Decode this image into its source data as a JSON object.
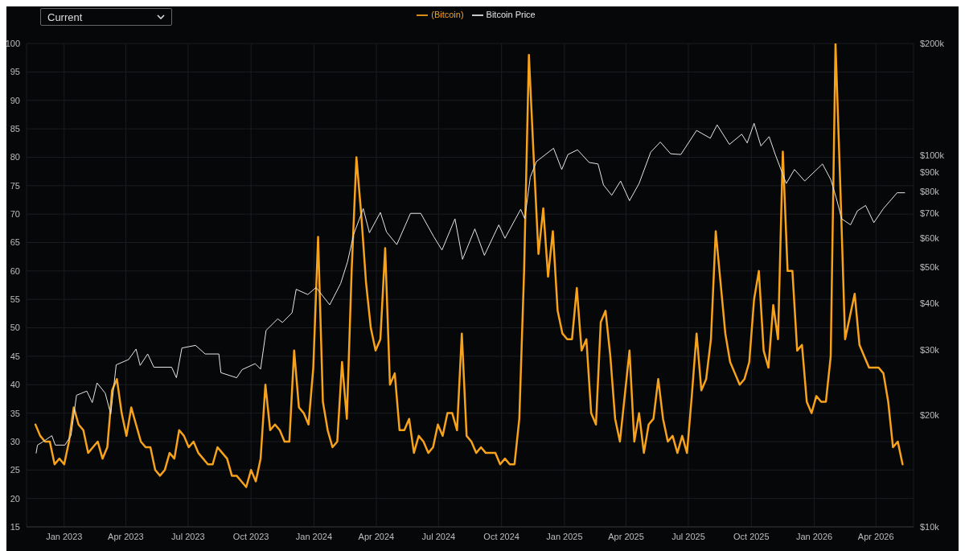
{
  "chart_data": {
    "type": "line",
    "annotations": [
      "Current"
    ],
    "x": [
      "2022-11-20",
      "2022-11-27",
      "2022-12-04",
      "2022-12-11",
      "2022-12-18",
      "2022-12-25",
      "2023-01-01",
      "2023-01-08",
      "2023-01-15",
      "2023-01-22",
      "2023-01-29",
      "2023-02-05",
      "2023-02-12",
      "2023-02-19",
      "2023-02-26",
      "2023-03-05",
      "2023-03-12",
      "2023-03-19",
      "2023-03-26",
      "2023-04-02",
      "2023-04-09",
      "2023-04-16",
      "2023-04-23",
      "2023-04-30",
      "2023-05-07",
      "2023-05-14",
      "2023-05-21",
      "2023-05-28",
      "2023-06-04",
      "2023-06-11",
      "2023-06-18",
      "2023-06-25",
      "2023-07-02",
      "2023-07-09",
      "2023-07-16",
      "2023-07-23",
      "2023-07-30",
      "2023-08-06",
      "2023-08-13",
      "2023-08-20",
      "2023-08-27",
      "2023-09-03",
      "2023-09-10",
      "2023-09-17",
      "2023-09-24",
      "2023-10-01",
      "2023-10-08",
      "2023-10-15",
      "2023-10-22",
      "2023-10-29",
      "2023-11-05",
      "2023-11-12",
      "2023-11-19",
      "2023-11-26",
      "2023-12-03",
      "2023-12-10",
      "2023-12-17",
      "2023-12-24",
      "2023-12-31",
      "2024-01-07",
      "2024-01-14",
      "2024-01-21",
      "2024-01-28",
      "2024-02-04",
      "2024-02-11",
      "2024-02-18",
      "2024-02-25",
      "2024-03-03",
      "2024-03-10",
      "2024-03-17",
      "2024-03-24",
      "2024-03-31",
      "2024-04-07",
      "2024-04-14",
      "2024-04-21",
      "2024-04-28",
      "2024-05-05",
      "2024-05-12",
      "2024-05-19",
      "2024-05-26",
      "2024-06-02",
      "2024-06-09",
      "2024-06-16",
      "2024-06-23",
      "2024-06-30",
      "2024-07-07",
      "2024-07-14",
      "2024-07-21",
      "2024-07-28",
      "2024-08-04",
      "2024-08-11",
      "2024-08-18",
      "2024-08-25",
      "2024-09-01",
      "2024-09-08",
      "2024-09-15",
      "2024-09-22",
      "2024-09-29",
      "2024-10-06",
      "2024-10-13",
      "2024-10-20",
      "2024-10-27",
      "2024-11-03",
      "2024-11-10",
      "2024-11-17",
      "2024-11-24",
      "2024-12-01",
      "2024-12-08",
      "2024-12-15",
      "2024-12-22",
      "2024-12-29",
      "2025-01-05",
      "2025-01-12",
      "2025-01-19",
      "2025-01-26",
      "2025-02-02",
      "2025-02-09",
      "2025-02-16",
      "2025-02-23",
      "2025-03-02",
      "2025-03-09",
      "2025-03-16",
      "2025-03-23",
      "2025-03-30",
      "2025-04-06",
      "2025-04-13",
      "2025-04-20",
      "2025-04-27",
      "2025-05-04",
      "2025-05-11",
      "2025-05-18",
      "2025-05-25",
      "2025-06-01",
      "2025-06-08",
      "2025-06-15",
      "2025-06-22",
      "2025-06-29",
      "2025-07-06",
      "2025-07-13",
      "2025-07-20",
      "2025-07-27",
      "2025-08-03",
      "2025-08-10",
      "2025-08-17",
      "2025-08-24",
      "2025-08-31",
      "2025-09-07",
      "2025-09-14",
      "2025-09-21",
      "2025-09-28",
      "2025-10-05",
      "2025-10-12",
      "2025-10-19",
      "2025-10-26",
      "2025-11-02",
      "2025-11-09",
      "2025-11-16",
      "2025-11-23",
      "2025-11-30",
      "2025-12-07",
      "2025-12-14",
      "2025-12-21",
      "2025-12-28",
      "2026-01-04",
      "2026-01-11",
      "2026-01-18",
      "2026-01-25",
      "2026-02-01",
      "2026-02-08",
      "2026-02-15",
      "2026-02-22",
      "2026-03-01",
      "2026-03-08",
      "2026-03-15",
      "2026-03-22",
      "2026-03-29",
      "2026-04-05",
      "2026-04-12",
      "2026-04-19",
      "2026-04-26",
      "2026-05-03",
      "2026-05-10"
    ],
    "series": [
      {
        "name": "(Bitcoin)",
        "color": "#f7a21b",
        "values": [
          33,
          31,
          30,
          30,
          26,
          27,
          26,
          30,
          36,
          33,
          32,
          28,
          29,
          30,
          27,
          29,
          39,
          41,
          35,
          31,
          36,
          33,
          30,
          29,
          29,
          25,
          24,
          25,
          28,
          27,
          32,
          31,
          29,
          30,
          28,
          27,
          26,
          26,
          29,
          28,
          27,
          24,
          24,
          23,
          22,
          25,
          23,
          27,
          40,
          32,
          33,
          32,
          30,
          30,
          46,
          36,
          35,
          33,
          43,
          66,
          37,
          32,
          29,
          30,
          44,
          34,
          60,
          80,
          70,
          58,
          50,
          46,
          48,
          64,
          40,
          42,
          32,
          32,
          34,
          28,
          31,
          30,
          28,
          29,
          33,
          31,
          35,
          35,
          32,
          49,
          31,
          30,
          28,
          29,
          28,
          28,
          28,
          26,
          27,
          26,
          26,
          34,
          60,
          98,
          80,
          63,
          71,
          59,
          67,
          53,
          49,
          48,
          48,
          57,
          46,
          48,
          35,
          33,
          51,
          53,
          45,
          34,
          30,
          38,
          46,
          30,
          35,
          28,
          33,
          34,
          41,
          34,
          30,
          31,
          28,
          31,
          28,
          38,
          49,
          39,
          41,
          48,
          67,
          58,
          49,
          44,
          42,
          40,
          41,
          44,
          55,
          60,
          46,
          43,
          54,
          48,
          81,
          60,
          60,
          46,
          47,
          37,
          35,
          38,
          37,
          37,
          45,
          100,
          75,
          48,
          52,
          56,
          47,
          45,
          43,
          43,
          43,
          42,
          37,
          29,
          30,
          26
        ]
      },
      {
        "name": "Bitcoin Price",
        "color": "#e6e6e6",
        "axis": "y2",
        "x": [
          "2022-11-21",
          "2022-11-23",
          "2022-11-30",
          "2022-12-14",
          "2022-12-19",
          "2023-01-02",
          "2023-01-11",
          "2023-01-19",
          "2023-02-03",
          "2023-02-11",
          "2023-02-18",
          "2023-03-02",
          "2023-03-10",
          "2023-03-18",
          "2023-04-05",
          "2023-04-16",
          "2023-04-22",
          "2023-05-03",
          "2023-05-12",
          "2023-06-07",
          "2023-06-14",
          "2023-06-22",
          "2023-07-12",
          "2023-07-26",
          "2023-08-15",
          "2023-08-18",
          "2023-09-10",
          "2023-09-18",
          "2023-10-07",
          "2023-10-15",
          "2023-10-23",
          "2023-11-09",
          "2023-11-16",
          "2023-11-30",
          "2023-12-06",
          "2023-12-23",
          "2024-01-04",
          "2024-01-24",
          "2024-02-09",
          "2024-02-19",
          "2024-02-28",
          "2024-03-13",
          "2024-03-22",
          "2024-04-07",
          "2024-04-16",
          "2024-05-01",
          "2024-05-21",
          "2024-06-05",
          "2024-06-24",
          "2024-07-06",
          "2024-07-25",
          "2024-08-05",
          "2024-08-23",
          "2024-09-06",
          "2024-09-27",
          "2024-10-06",
          "2024-10-29",
          "2024-11-04",
          "2024-11-12",
          "2024-11-21",
          "2024-12-16",
          "2024-12-28",
          "2025-01-06",
          "2025-01-20",
          "2025-02-06",
          "2025-02-19",
          "2025-02-27",
          "2025-03-11",
          "2025-03-24",
          "2025-04-06",
          "2025-04-20",
          "2025-05-07",
          "2025-05-21",
          "2025-06-05",
          "2025-06-20",
          "2025-07-13",
          "2025-08-02",
          "2025-08-12",
          "2025-08-30",
          "2025-09-17",
          "2025-09-25",
          "2025-10-05",
          "2025-10-15",
          "2025-10-27",
          "2025-11-05",
          "2025-11-21",
          "2025-12-03",
          "2025-12-18",
          "2026-01-13",
          "2026-01-25",
          "2026-02-02",
          "2026-02-10",
          "2026-02-23",
          "2026-03-05",
          "2026-03-17",
          "2026-03-29",
          "2026-04-12",
          "2026-05-02",
          "2026-05-13"
        ],
        "values": [
          15800,
          16600,
          16900,
          17600,
          16600,
          16600,
          17600,
          22600,
          23200,
          21600,
          24400,
          22900,
          20100,
          27300,
          28200,
          30100,
          27200,
          29200,
          26900,
          26900,
          25200,
          30300,
          30800,
          29200,
          29200,
          26000,
          25200,
          26500,
          27500,
          26600,
          33800,
          36300,
          35500,
          37700,
          43600,
          42200,
          44100,
          39600,
          45200,
          51700,
          61300,
          71900,
          61900,
          70200,
          62200,
          57500,
          69800,
          69800,
          60400,
          55600,
          67500,
          52500,
          63400,
          53800,
          65000,
          59800,
          71600,
          67500,
          87300,
          96200,
          104500,
          91600,
          100500,
          103500,
          95700,
          94800,
          83200,
          78100,
          85300,
          75500,
          84000,
          102000,
          108600,
          101000,
          100500,
          116700,
          111200,
          120800,
          107000,
          114000,
          108000,
          122000,
          106000,
          112300,
          100500,
          84000,
          91600,
          85300,
          94800,
          86100,
          76900,
          67500,
          65000,
          70900,
          73300,
          65900,
          71900,
          79300,
          79300
        ]
      }
    ],
    "xlim": [
      "2022-11-07",
      "2026-05-26"
    ],
    "xticks": [
      {
        "value": "2023-01-01",
        "label": "Jan 2023"
      },
      {
        "value": "2023-04-01",
        "label": "Apr 2023"
      },
      {
        "value": "2023-07-01",
        "label": "Jul 2023"
      },
      {
        "value": "2023-10-01",
        "label": "Oct 2023"
      },
      {
        "value": "2024-01-01",
        "label": "Jan 2024"
      },
      {
        "value": "2024-04-01",
        "label": "Apr 2024"
      },
      {
        "value": "2024-07-01",
        "label": "Jul 2024"
      },
      {
        "value": "2024-10-01",
        "label": "Oct 2024"
      },
      {
        "value": "2025-01-01",
        "label": "Jan 2025"
      },
      {
        "value": "2025-04-01",
        "label": "Apr 2025"
      },
      {
        "value": "2025-07-01",
        "label": "Jul 2025"
      },
      {
        "value": "2025-10-01",
        "label": "Oct 2025"
      },
      {
        "value": "2026-01-01",
        "label": "Jan 2026"
      },
      {
        "value": "2026-04-01",
        "label": "Apr 2026"
      }
    ],
    "ylim": [
      15,
      100
    ],
    "yticks": [
      15,
      20,
      25,
      30,
      35,
      40,
      45,
      50,
      55,
      60,
      65,
      70,
      75,
      80,
      85,
      90,
      95,
      100
    ],
    "y2lim": [
      10000,
      200000
    ],
    "y2ticks": [
      {
        "value": 10000,
        "label": "$10k"
      },
      {
        "value": 20000,
        "label": "$20k"
      },
      {
        "value": 30000,
        "label": "$30k"
      },
      {
        "value": 40000,
        "label": "$40k"
      },
      {
        "value": 50000,
        "label": "$50k"
      },
      {
        "value": 60000,
        "label": "$60k"
      },
      {
        "value": 70000,
        "label": "$70k"
      },
      {
        "value": 80000,
        "label": "$80k"
      },
      {
        "value": 90000,
        "label": "$90k"
      },
      {
        "value": 100000,
        "label": "$100k"
      },
      {
        "value": 200000,
        "label": "$200k"
      }
    ],
    "log": "y2",
    "grid": true,
    "legend": "top",
    "marker": "none",
    "line_style": "solid"
  }
}
